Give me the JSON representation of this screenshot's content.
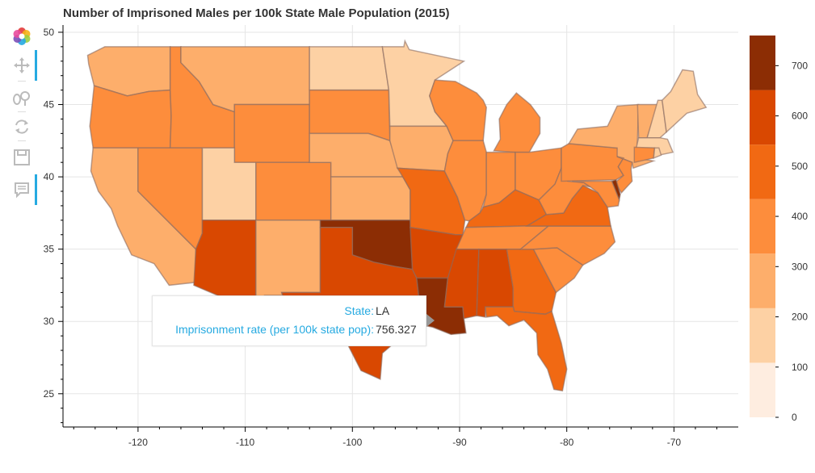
{
  "title": "Number of Imprisoned Males per 100k State Male Population (2015)",
  "toolbar": {
    "tools": [
      "bokeh-logo-icon",
      "pan-icon",
      "wheel-zoom-icon",
      "reset-icon",
      "save-icon",
      "hover-icon"
    ]
  },
  "axes": {
    "x_ticks": [
      "-120",
      "-110",
      "-100",
      "-90",
      "-80",
      "-70"
    ],
    "y_ticks": [
      "50",
      "45",
      "40",
      "35",
      "30",
      "25"
    ],
    "x_range": [
      -127,
      -64
    ],
    "y_range": [
      22.7,
      50.5
    ]
  },
  "colorbar": {
    "ticks": [
      "700",
      "600",
      "500",
      "400",
      "300",
      "200",
      "100",
      "0"
    ],
    "bins": [
      {
        "label": "0-110",
        "color": "#feede0"
      },
      {
        "label": "110-220",
        "color": "#fdd1a4"
      },
      {
        "label": "220-330",
        "color": "#fdae6b"
      },
      {
        "label": "330-430",
        "color": "#fd8d3c"
      },
      {
        "label": "430-540",
        "color": "#f16913"
      },
      {
        "label": "540-650",
        "color": "#d94801"
      },
      {
        "label": "650-760",
        "color": "#8c2d04"
      }
    ],
    "range": [
      0,
      760
    ]
  },
  "tooltip": {
    "state_label": "State:",
    "state_value": "LA",
    "rate_label": "Imprisonment rate (per 100k state pop):",
    "rate_value": "756.327"
  },
  "chart_data": {
    "type": "choropleth",
    "title": "Number of Imprisoned Males per 100k State Male Population (2015)",
    "value_name": "Imprisonment rate (per 100k state pop)",
    "states": [
      {
        "state": "WA",
        "bin": 2
      },
      {
        "state": "OR",
        "bin": 3
      },
      {
        "state": "CA",
        "bin": 2
      },
      {
        "state": "ID",
        "bin": 3
      },
      {
        "state": "NV",
        "bin": 3
      },
      {
        "state": "MT",
        "bin": 2
      },
      {
        "state": "WY",
        "bin": 3
      },
      {
        "state": "UT",
        "bin": 1
      },
      {
        "state": "CO",
        "bin": 3
      },
      {
        "state": "AZ",
        "bin": 5
      },
      {
        "state": "NM",
        "bin": 2
      },
      {
        "state": "ND",
        "bin": 1
      },
      {
        "state": "SD",
        "bin": 3
      },
      {
        "state": "NE",
        "bin": 2
      },
      {
        "state": "KS",
        "bin": 2
      },
      {
        "state": "OK",
        "bin": 6
      },
      {
        "state": "TX",
        "bin": 5
      },
      {
        "state": "MN",
        "bin": 1
      },
      {
        "state": "IA",
        "bin": 2
      },
      {
        "state": "MO",
        "bin": 4
      },
      {
        "state": "AR",
        "bin": 5
      },
      {
        "state": "LA",
        "bin": 6,
        "value": 756.327
      },
      {
        "state": "WI",
        "bin": 3
      },
      {
        "state": "IL",
        "bin": 3
      },
      {
        "state": "MI",
        "bin": 3
      },
      {
        "state": "IN",
        "bin": 3
      },
      {
        "state": "OH",
        "bin": 3
      },
      {
        "state": "KY",
        "bin": 4
      },
      {
        "state": "TN",
        "bin": 3
      },
      {
        "state": "MS",
        "bin": 5
      },
      {
        "state": "AL",
        "bin": 5
      },
      {
        "state": "GA",
        "bin": 4
      },
      {
        "state": "FL",
        "bin": 4
      },
      {
        "state": "SC",
        "bin": 3
      },
      {
        "state": "NC",
        "bin": 3
      },
      {
        "state": "VA",
        "bin": 4
      },
      {
        "state": "WV",
        "bin": 3
      },
      {
        "state": "PA",
        "bin": 3
      },
      {
        "state": "NY",
        "bin": 2
      },
      {
        "state": "VT",
        "bin": 2
      },
      {
        "state": "NH",
        "bin": 1
      },
      {
        "state": "ME",
        "bin": 1
      },
      {
        "state": "MA",
        "bin": 1
      },
      {
        "state": "CT",
        "bin": 3
      },
      {
        "state": "RI",
        "bin": 1
      },
      {
        "state": "NJ",
        "bin": 3
      },
      {
        "state": "DE",
        "bin": 6
      },
      {
        "state": "MD",
        "bin": 3
      }
    ]
  }
}
